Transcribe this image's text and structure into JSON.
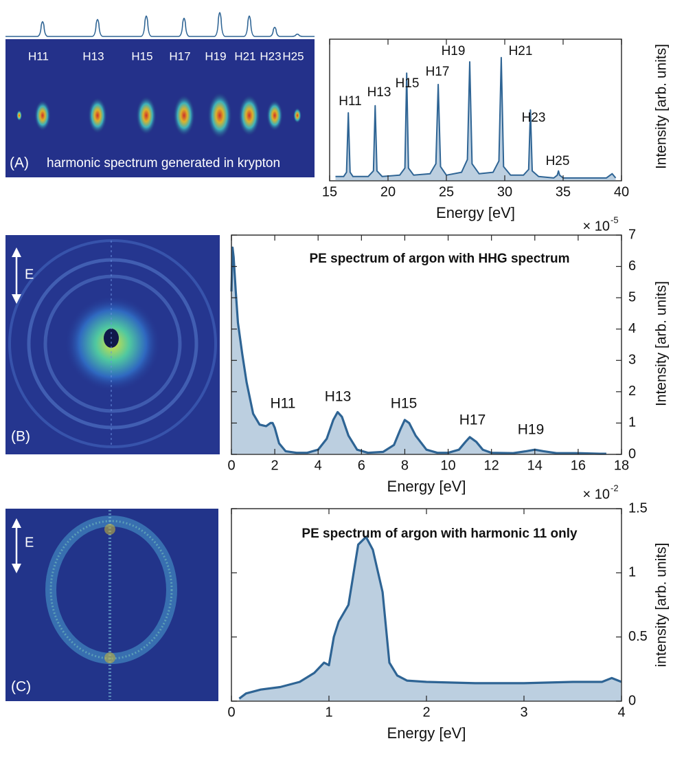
{
  "images": [
    {
      "labels": [
        "H11",
        "H13",
        "H15",
        "H17",
        "H19",
        "H21",
        "H23",
        "H25"
      ],
      "panel": "(A)",
      "caption": "harmonic spectrum generated in krypton"
    },
    {
      "panel": "(B)",
      "field": "E"
    },
    {
      "panel": "(C)",
      "field": "E"
    }
  ],
  "chart_data": [
    {
      "type": "area",
      "xlabel": "Energy [eV]",
      "ylabel": "Intensity [arb. units]",
      "color": "#2e6494",
      "fill": "#bccfe0",
      "xlim": [
        15,
        40
      ],
      "xticks": [
        15,
        20,
        25,
        30,
        35,
        40
      ],
      "ylim": [
        0,
        1
      ],
      "x": [
        15.5,
        16.2,
        16.45,
        16.6,
        16.75,
        17.0,
        18.3,
        18.75,
        18.9,
        19.05,
        19.5,
        21.0,
        21.45,
        21.6,
        21.75,
        22.2,
        23.6,
        24.1,
        24.3,
        24.5,
        25.0,
        26.3,
        26.8,
        27.0,
        27.2,
        27.8,
        29.0,
        29.5,
        29.7,
        29.9,
        30.5,
        31.6,
        32.05,
        32.2,
        32.35,
        32.9,
        34.2,
        34.5,
        34.6,
        34.7,
        35.0,
        38.7,
        39.2,
        39.5
      ],
      "values": [
        0.03,
        0.03,
        0.06,
        0.48,
        0.06,
        0.03,
        0.03,
        0.07,
        0.53,
        0.07,
        0.03,
        0.04,
        0.09,
        0.76,
        0.09,
        0.04,
        0.05,
        0.12,
        0.68,
        0.1,
        0.04,
        0.06,
        0.15,
        0.84,
        0.12,
        0.05,
        0.06,
        0.14,
        0.87,
        0.1,
        0.04,
        0.04,
        0.08,
        0.5,
        0.07,
        0.03,
        0.02,
        0.04,
        0.07,
        0.04,
        0.02,
        0.02,
        0.05,
        0.02
      ],
      "annotations": [
        "H11",
        "H13",
        "H15",
        "H17",
        "H19",
        "H21",
        "H23",
        "H25"
      ]
    },
    {
      "type": "area",
      "title": "PE spectrum of argon with HHG spectrum",
      "xlabel": "Energy [eV]",
      "ylabel": "Intensity [arb. units]",
      "color": "#2e6494",
      "fill": "#bccfe0",
      "y_multiplier": {
        "base": "× 10",
        "exponent": "-5"
      },
      "xlim": [
        0,
        18
      ],
      "xticks": [
        0,
        2,
        4,
        6,
        8,
        10,
        12,
        14,
        16,
        18
      ],
      "ylim": [
        0,
        7
      ],
      "yticks": [
        0,
        1,
        2,
        3,
        4,
        5,
        6,
        7
      ],
      "x": [
        0,
        0.05,
        0.1,
        0.2,
        0.3,
        0.5,
        0.7,
        1.0,
        1.3,
        1.6,
        1.8,
        1.9,
        2.0,
        2.2,
        2.5,
        3,
        3.5,
        4.0,
        4.4,
        4.7,
        4.9,
        5.1,
        5.4,
        5.8,
        6.3,
        7,
        7.5,
        7.8,
        8.0,
        8.2,
        8.5,
        9,
        9.5,
        10,
        10.5,
        10.8,
        11.0,
        11.3,
        11.6,
        12,
        13,
        13.6,
        14,
        14.4,
        15,
        16,
        17,
        17.3
      ],
      "values": [
        5.2,
        6.6,
        6.3,
        5.2,
        4.2,
        3.2,
        2.3,
        1.3,
        0.95,
        0.9,
        1.0,
        1.0,
        0.85,
        0.35,
        0.1,
        0.05,
        0.05,
        0.15,
        0.5,
        1.1,
        1.35,
        1.2,
        0.6,
        0.15,
        0.05,
        0.08,
        0.3,
        0.8,
        1.1,
        1.0,
        0.6,
        0.15,
        0.05,
        0.05,
        0.15,
        0.4,
        0.55,
        0.4,
        0.15,
        0.05,
        0.04,
        0.1,
        0.15,
        0.1,
        0.04,
        0.04,
        0.02,
        0.02
      ],
      "annotations": [
        "H11",
        "H13",
        "H15",
        "H17",
        "H19"
      ]
    },
    {
      "type": "area",
      "title": "PE spectrum of argon with harmonic 11 only",
      "xlabel": "Energy [eV]",
      "ylabel": "intensity [arb. units]",
      "color": "#2e6494",
      "fill": "#bccfe0",
      "y_multiplier": {
        "base": "× 10",
        "exponent": "-2"
      },
      "xlim": [
        0,
        4
      ],
      "xticks": [
        0,
        1,
        2,
        3,
        4
      ],
      "ylim": [
        0,
        1.5
      ],
      "yticks": [
        0,
        0.5,
        1,
        1.5
      ],
      "x": [
        0.08,
        0.15,
        0.3,
        0.5,
        0.7,
        0.85,
        0.95,
        1.0,
        1.05,
        1.1,
        1.2,
        1.3,
        1.38,
        1.45,
        1.55,
        1.62,
        1.7,
        1.8,
        2.0,
        2.5,
        3.0,
        3.5,
        3.8,
        3.9,
        4.0
      ],
      "values": [
        0.02,
        0.06,
        0.09,
        0.11,
        0.15,
        0.22,
        0.3,
        0.28,
        0.5,
        0.62,
        0.75,
        1.22,
        1.28,
        1.18,
        0.85,
        0.3,
        0.2,
        0.16,
        0.15,
        0.14,
        0.14,
        0.15,
        0.15,
        0.18,
        0.15
      ]
    }
  ]
}
